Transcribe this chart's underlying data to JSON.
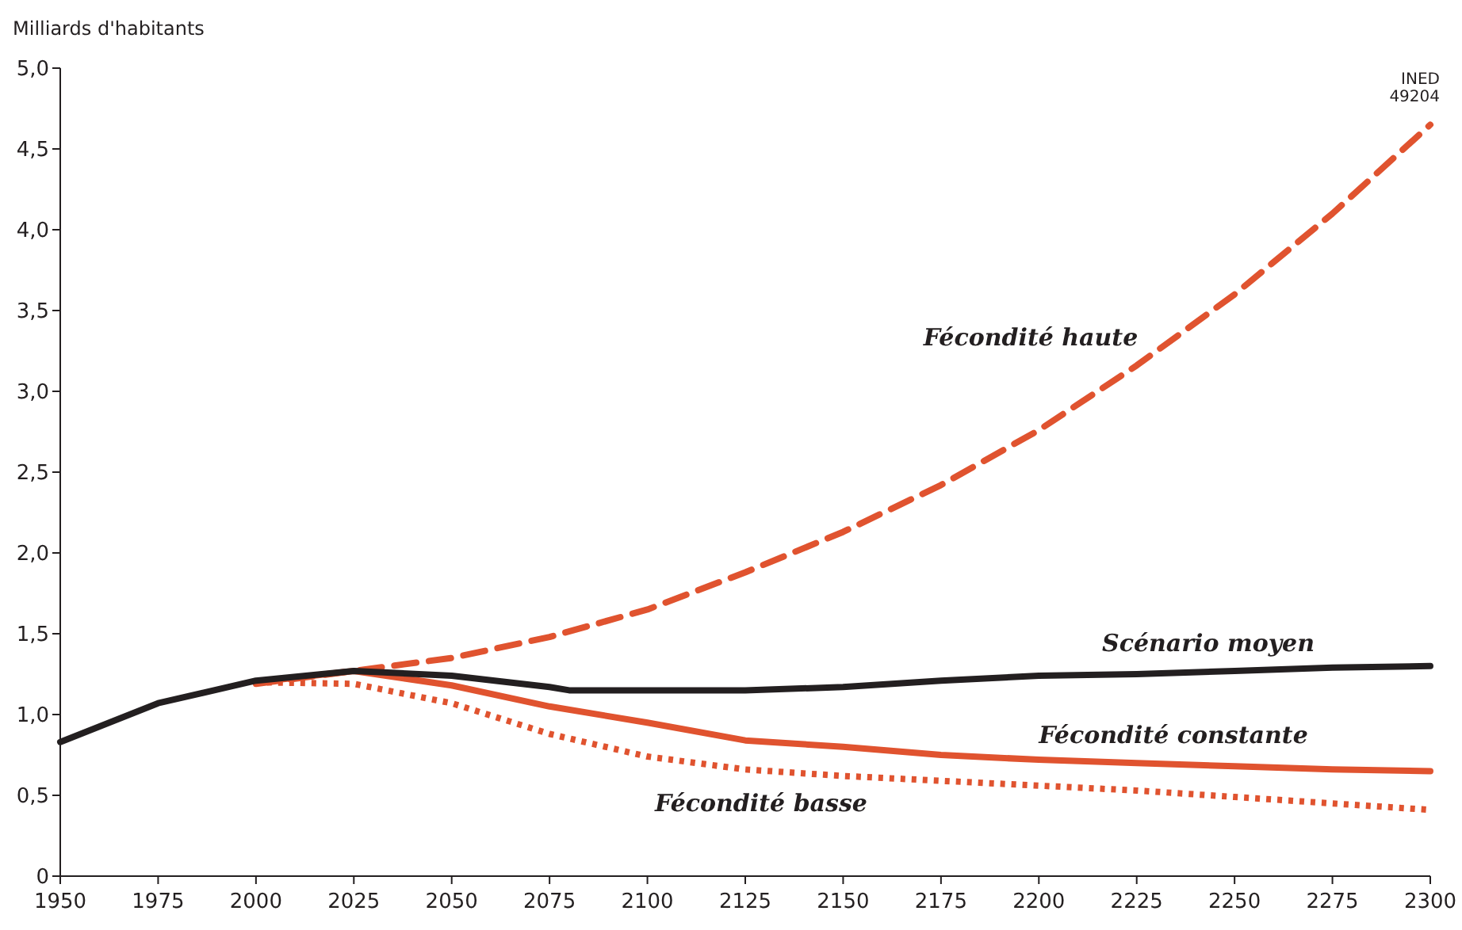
{
  "chart_data": {
    "type": "line",
    "ylabel": "Milliards d'habitants",
    "annotations": [
      "INED\n49204"
    ],
    "xlim": [
      1950,
      2300
    ],
    "xticks": [
      1950,
      1975,
      2000,
      2025,
      2050,
      2075,
      2100,
      2125,
      2150,
      2175,
      2200,
      2225,
      2250,
      2275,
      2300
    ],
    "ylim": [
      0,
      5
    ],
    "yticks": [
      0,
      {
        "value": 0.5,
        "label": "0,5"
      },
      {
        "value": 1,
        "label": "1,0"
      },
      {
        "value": 1.5,
        "label": "1,5"
      },
      {
        "value": 2,
        "label": "2,0"
      },
      {
        "value": 2.5,
        "label": "2,5"
      },
      {
        "value": 3,
        "label": "3,0"
      },
      {
        "value": 3.5,
        "label": "3,5"
      },
      {
        "value": 4,
        "label": "4,0"
      },
      {
        "value": 4.5,
        "label": "4,5"
      },
      {
        "value": 5,
        "label": "5,0"
      }
    ],
    "grid": false,
    "marker": "none",
    "series": [
      {
        "name": "Fécondité haute",
        "color": "#e0532f",
        "line_style": "dashed",
        "x": [
          2000,
          2025,
          2050,
          2075,
          2100,
          2125,
          2150,
          2175,
          2200,
          2225,
          2250,
          2275,
          2300
        ],
        "values": [
          1.19,
          1.27,
          1.35,
          1.48,
          1.65,
          1.88,
          2.13,
          2.42,
          2.76,
          3.16,
          3.6,
          4.1,
          4.65
        ]
      },
      {
        "name": "Fécondité constante",
        "color": "#e0532f",
        "line_style": "solid",
        "x": [
          2000,
          2025,
          2050,
          2075,
          2100,
          2125,
          2150,
          2175,
          2200,
          2225,
          2250,
          2275,
          2300
        ],
        "values": [
          1.2,
          1.27,
          1.18,
          1.05,
          0.95,
          0.84,
          0.8,
          0.75,
          0.72,
          0.7,
          0.68,
          0.66,
          0.65
        ]
      },
      {
        "name": "Fécondité basse",
        "color": "#e0532f",
        "line_style": "dotted",
        "x": [
          2000,
          2025,
          2050,
          2075,
          2100,
          2125,
          2150,
          2175,
          2200,
          2225,
          2250,
          2275,
          2300
        ],
        "values": [
          1.2,
          1.19,
          1.07,
          0.88,
          0.74,
          0.66,
          0.62,
          0.59,
          0.56,
          0.53,
          0.49,
          0.45,
          0.41
        ]
      },
      {
        "name": "Scénario moyen",
        "color": "#231f20",
        "line_style": "solid",
        "x": [
          1950,
          1975,
          2000,
          2025,
          2050,
          2075,
          2080,
          2100,
          2125,
          2150,
          2175,
          2200,
          2225,
          2250,
          2275,
          2300
        ],
        "values": [
          0.83,
          1.07,
          1.21,
          1.27,
          1.24,
          1.17,
          1.15,
          1.15,
          1.15,
          1.17,
          1.21,
          1.24,
          1.25,
          1.27,
          1.29,
          1.3
        ]
      }
    ]
  }
}
